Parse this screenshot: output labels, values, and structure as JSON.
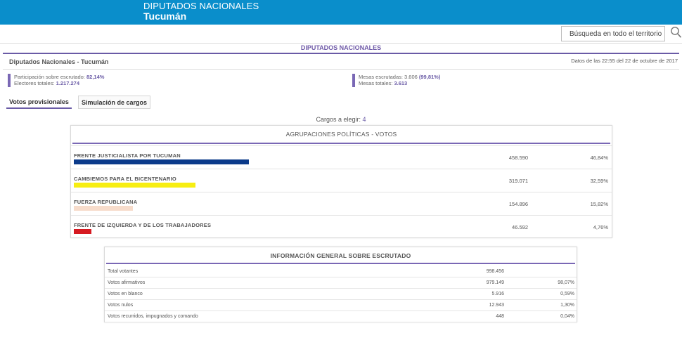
{
  "header": {
    "line1": "DIPUTADOS NACIONALES",
    "line2": "Tucumán"
  },
  "search": {
    "label": "Búsqueda en todo el territorio"
  },
  "section_title": "DIPUTADOS NACIONALES",
  "page": {
    "title": "Diputados Nacionales - Tucumán",
    "date": "Datos de las 22:55 del 22 de octubre de 2017"
  },
  "stats": {
    "participacion_label": "Participación sobre escrutado:",
    "participacion_value": "82,14%",
    "electores_label": "Electores totales:",
    "electores_value": "1.217.274",
    "mesas_escrutadas_label": "Mesas escrutadas: 3.606",
    "mesas_escrutadas_pct": "(99,81%)",
    "mesas_totales_label": "Mesas totales:",
    "mesas_totales_value": "3.613"
  },
  "tabs": [
    {
      "label": "Votos provisionales",
      "active": true
    },
    {
      "label": "Simulación de cargos",
      "active": false
    }
  ],
  "cargos": {
    "label": "Cargos a elegir:",
    "value": "4"
  },
  "parties_panel": {
    "title": "AGRUPACIONES POLÍTICAS - VOTOS",
    "rows": [
      {
        "name": "FRENTE JUSTICIALISTA POR TUCUMAN",
        "votes": "458.590",
        "pct": "46,84%",
        "share": 0.4684,
        "color": "#0b3a8a"
      },
      {
        "name": "CAMBIEMOS PARA EL BICENTENARIO",
        "votes": "319.071",
        "pct": "32,59%",
        "share": 0.3259,
        "color": "#f7ee12"
      },
      {
        "name": "FUERZA REPUBLICANA",
        "votes": "154.896",
        "pct": "15,82%",
        "share": 0.1582,
        "color": "#f7dccb"
      },
      {
        "name": "FRENTE DE IZQUIERDA Y DE LOS TRABAJADORES",
        "votes": "46.592",
        "pct": "4,76%",
        "share": 0.0476,
        "color": "#d61a21"
      }
    ]
  },
  "info_panel": {
    "title": "INFORMACIÓN GENERAL SOBRE ESCRUTADO",
    "rows": [
      {
        "label": "Total votantes",
        "value": "998.456",
        "pct": ""
      },
      {
        "label": "Votos afirmativos",
        "value": "979.149",
        "pct": "98,07%"
      },
      {
        "label": "Votos en blanco",
        "value": "5.916",
        "pct": "0,59%"
      },
      {
        "label": "Votos nulos",
        "value": "12.943",
        "pct": "1,30%"
      },
      {
        "label": "Votos recurridos, impugnados y comando",
        "value": "448",
        "pct": "0,04%"
      }
    ]
  },
  "colors": {
    "header_bg": "#0a8ecb",
    "accent": "#6a5ba6"
  }
}
